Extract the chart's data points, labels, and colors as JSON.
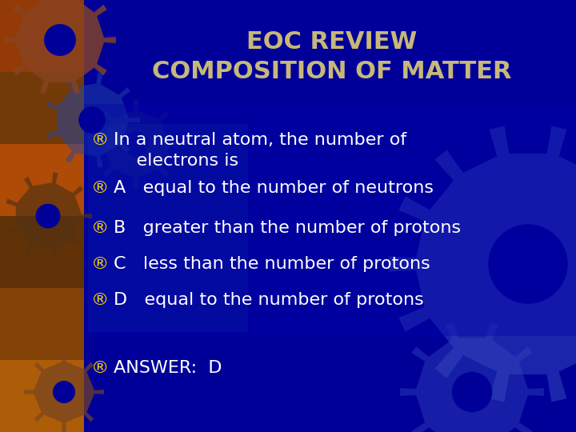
{
  "title_line1": "EOC REVIEW",
  "title_line2": "COMPOSITION OF MATTER",
  "title_color": "#C8B878",
  "title_fontsize": 22,
  "bg_color": "#000099",
  "bullet_color": "#FFD700",
  "text_color": "#FFFFFF",
  "bullet_char": "®",
  "line_texts": [
    "In a neutral atom, the number of\n    electrons is",
    "A   equal to the number of neutrons",
    "B   greater than the number of protons",
    "C   less than the number of protons",
    "D   equal to the number of protons"
  ],
  "answer_text": "ANSWER:  D",
  "body_fontsize": 16,
  "answer_fontsize": 16,
  "gear_color": "#3344BB",
  "gear_alpha": 0.55,
  "left_strip_color": "#CC4400"
}
